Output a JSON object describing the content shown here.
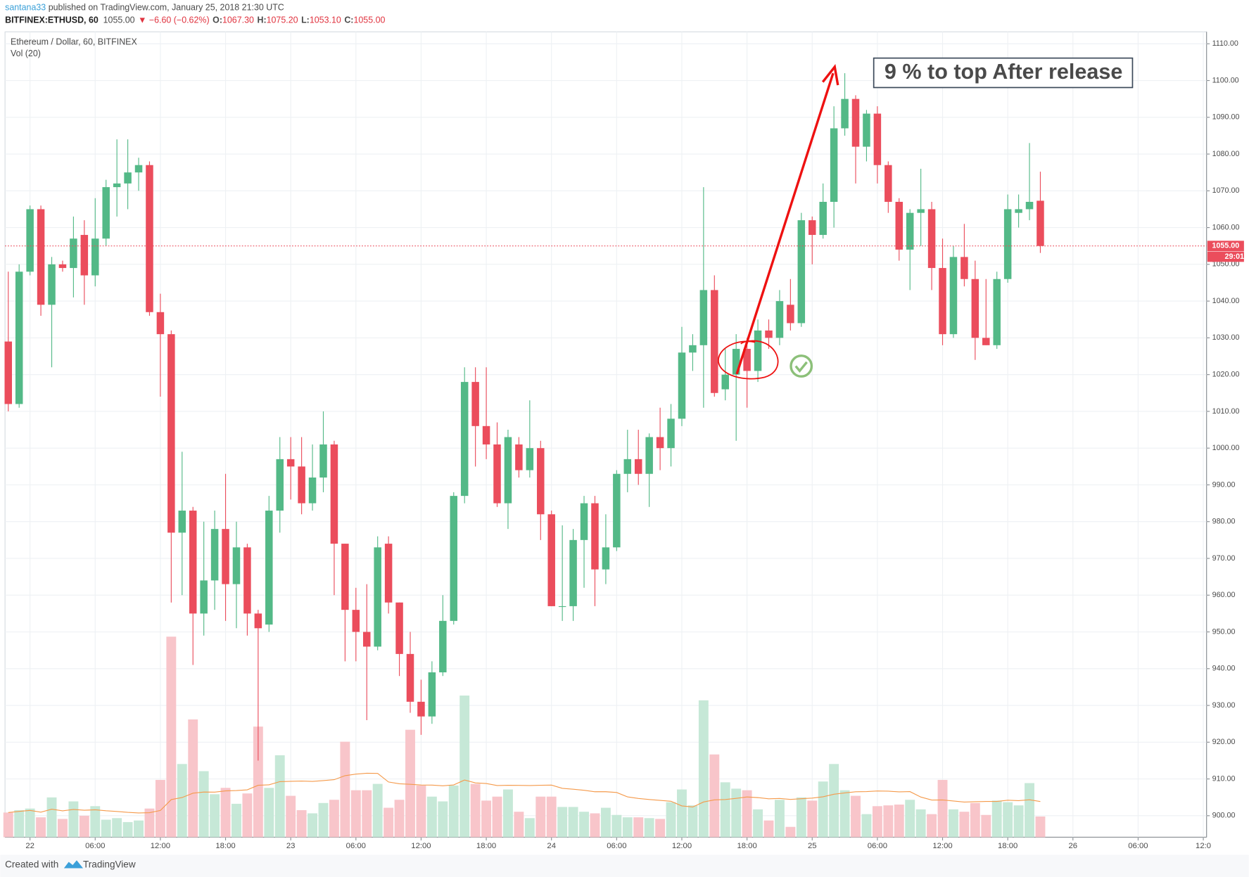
{
  "header": {
    "author": "santana33",
    "published": " published on TradingView.com, January 25, 2018 21:30 UTC",
    "symbol": "BITFINEX:ETHUSD, 60",
    "last": "1055.00",
    "change": "▼ −6.60 (−0.62%)",
    "ohlc": [
      {
        "key": "O:",
        "value": "1067.30"
      },
      {
        "key": "H:",
        "value": "1075.20"
      },
      {
        "key": "L:",
        "value": "1053.10"
      },
      {
        "key": "C:",
        "value": "1055.00"
      }
    ]
  },
  "chart_data": {
    "type": "candlestick",
    "title": "Ethereum / Dollar, 60, BITFINEX",
    "volume_label": "Vol (20)",
    "annotation": "9 % to top After release",
    "open": [
      1029,
      1012,
      1048,
      1065,
      1039,
      1050,
      1049,
      1058,
      1047,
      1057,
      1071,
      1072,
      1075,
      1077,
      1037,
      1031,
      977,
      983,
      955,
      964,
      978,
      963,
      973,
      955,
      952,
      983,
      997,
      995,
      985,
      992,
      1001,
      974,
      956,
      950,
      946,
      974,
      958,
      944,
      931,
      927,
      939,
      953,
      987,
      1018,
      1006,
      1001,
      985,
      1001,
      994,
      1000,
      982,
      957,
      957,
      975,
      985,
      967,
      973,
      993,
      997,
      993,
      1003,
      1000,
      1008,
      1026,
      1028,
      1043,
      1016,
      1020,
      1027,
      1021,
      1032,
      1030,
      1039,
      1034,
      1062,
      1058,
      1067,
      1087,
      1095,
      1082,
      1091,
      1077,
      1067,
      1054,
      1064,
      1065,
      1049,
      1031,
      1052,
      1046,
      1030,
      1028,
      1046,
      1064,
      1065,
      1067.3
    ],
    "high": [
      1048,
      1050,
      1066,
      1066,
      1052,
      1051,
      1063,
      1062,
      1068,
      1073,
      1084,
      1084,
      1079,
      1078,
      1042,
      1032,
      999,
      984,
      980,
      983,
      993,
      980,
      974,
      956,
      987,
      1003,
      1003,
      1003,
      1001,
      1010,
      1002,
      974,
      962,
      963,
      976,
      976,
      958,
      950,
      937,
      942,
      960,
      988,
      1022,
      1022,
      1022,
      1007,
      1005,
      1003,
      1013,
      1002,
      983,
      979,
      978,
      987,
      987,
      982,
      994,
      1005,
      1005,
      1004,
      1011,
      1012,
      1033,
      1031,
      1071,
      1047,
      1027,
      1031,
      1030,
      1035,
      1035,
      1043,
      1046,
      1064,
      1063,
      1072,
      1093,
      1102,
      1096,
      1092,
      1093,
      1078,
      1068,
      1065,
      1076,
      1067,
      1057,
      1055,
      1061,
      1051,
      1046,
      1048,
      1069,
      1069,
      1083,
      1075.2
    ],
    "low": [
      1010,
      1011,
      1047,
      1036,
      1022,
      1048,
      1041,
      1039,
      1044,
      1055,
      1063,
      1065,
      1070,
      1036,
      1014,
      958,
      960,
      941,
      949,
      956,
      953,
      951,
      949,
      915,
      950,
      977,
      986,
      982,
      983,
      988,
      960,
      942,
      942,
      926,
      945,
      955,
      938,
      928,
      922,
      925,
      938,
      952,
      985,
      995,
      997,
      984,
      978,
      992,
      992,
      975,
      957,
      953,
      953,
      962,
      957,
      963,
      972,
      988,
      990,
      984,
      994,
      995,
      1006,
      1021,
      1011,
      1014,
      1013,
      1002,
      1011,
      1018,
      1027,
      1028,
      1032,
      1033,
      1050,
      1057,
      1060,
      1085,
      1072,
      1078,
      1072,
      1064,
      1051,
      1043,
      1055,
      1043,
      1028,
      1030,
      1044,
      1024,
      1028,
      1027,
      1045,
      1060,
      1062,
      1053.1
    ],
    "close": [
      1012,
      1048,
      1065,
      1039,
      1050,
      1049,
      1057,
      1047,
      1057,
      1071,
      1072,
      1075,
      1077,
      1037,
      1031,
      977,
      983,
      955,
      964,
      978,
      963,
      973,
      955,
      951,
      983,
      997,
      995,
      985,
      992,
      1001,
      974,
      956,
      950,
      946,
      973,
      958,
      944,
      931,
      927,
      939,
      953,
      987,
      1018,
      1006,
      1001,
      985,
      1003,
      994,
      1000,
      982,
      957,
      957,
      975,
      985,
      967,
      973,
      993,
      997,
      993,
      1003,
      1000,
      1008,
      1026,
      1028,
      1043,
      1015,
      1020,
      1027,
      1021,
      1032,
      1030,
      1040,
      1034,
      1062,
      1058,
      1067,
      1087,
      1095,
      1082,
      1091,
      1077,
      1067,
      1054,
      1064,
      1065,
      1049,
      1031,
      1052,
      1046,
      1030,
      1028,
      1046,
      1065,
      1065,
      1067,
      1055
    ],
    "volume": [
      31,
      34,
      36,
      25,
      50,
      23,
      45,
      27,
      39,
      22,
      24,
      19,
      21,
      36,
      72,
      252,
      92,
      148,
      83,
      54,
      62,
      42,
      55,
      139,
      62,
      103,
      52,
      34,
      30,
      43,
      47,
      120,
      59,
      59,
      67,
      37,
      47,
      135,
      65,
      51,
      45,
      65,
      178,
      67,
      46,
      51,
      60,
      32,
      24,
      51,
      51,
      38,
      38,
      32,
      30,
      37,
      28,
      25,
      25,
      24,
      23,
      44,
      60,
      40,
      172,
      104,
      69,
      61,
      59,
      35,
      21,
      47,
      13,
      50,
      46,
      70,
      92,
      59,
      52,
      29,
      39,
      40,
      41,
      47,
      35,
      29,
      72,
      35,
      32,
      43,
      28,
      46,
      44,
      40,
      68,
      26
    ],
    "volume_ma_period": 20,
    "xlim": [
      -0.3,
      110.3
    ],
    "xticks": [
      {
        "value": 2,
        "label": "22"
      },
      {
        "value": 8,
        "label": "06:00"
      },
      {
        "value": 14,
        "label": "12:00"
      },
      {
        "value": 20,
        "label": "18:00"
      },
      {
        "value": 26,
        "label": "23"
      },
      {
        "value": 32,
        "label": "06:00"
      },
      {
        "value": 38,
        "label": "12:00"
      },
      {
        "value": 44,
        "label": "18:00"
      },
      {
        "value": 50,
        "label": "24"
      },
      {
        "value": 56,
        "label": "06:00"
      },
      {
        "value": 62,
        "label": "12:00"
      },
      {
        "value": 68,
        "label": "18:00"
      },
      {
        "value": 74,
        "label": "25"
      },
      {
        "value": 80,
        "label": "06:00"
      },
      {
        "value": 86,
        "label": "12:00"
      },
      {
        "value": 92,
        "label": "18:00"
      },
      {
        "value": 98,
        "label": "26"
      },
      {
        "value": 104,
        "label": "06:00"
      },
      {
        "value": 110,
        "label": "12:0"
      }
    ],
    "ylim": [
      894.15,
      1113.25
    ],
    "yticks": [
      {
        "value": 900,
        "label": "900.00"
      },
      {
        "value": 910,
        "label": "910.00"
      },
      {
        "value": 920,
        "label": "920.00"
      },
      {
        "value": 930,
        "label": "930.00"
      },
      {
        "value": 940,
        "label": "940.00"
      },
      {
        "value": 950,
        "label": "950.00"
      },
      {
        "value": 960,
        "label": "960.00"
      },
      {
        "value": 970,
        "label": "970.00"
      },
      {
        "value": 980,
        "label": "980.00"
      },
      {
        "value": 990,
        "label": "990.00"
      },
      {
        "value": 1000,
        "label": "1000.00"
      },
      {
        "value": 1010,
        "label": "1010.00"
      },
      {
        "value": 1020,
        "label": "1020.00"
      },
      {
        "value": 1030,
        "label": "1030.00"
      },
      {
        "value": 1040,
        "label": "1040.00"
      },
      {
        "value": 1050,
        "label": "1050.00"
      },
      {
        "value": 1060,
        "label": "1060.00"
      },
      {
        "value": 1070,
        "label": "1070.00"
      },
      {
        "value": 1080,
        "label": "1080.00"
      },
      {
        "value": 1090,
        "label": "1090.00"
      },
      {
        "value": 1100,
        "label": "1100.00"
      },
      {
        "value": 1110,
        "label": "1110.00"
      }
    ],
    "y2lim": [
      0,
      1012
    ],
    "last_price": {
      "value": 1055,
      "label": "1055.00"
    },
    "countdown": "29:01",
    "grid": true,
    "up_color": "#53b987",
    "down_color": "#eb4d5c",
    "up_volume_color": "#c6e8d7",
    "down_volume_color": "#f8c5ca",
    "volume_ma_color": "#f59a4b"
  },
  "footer": {
    "created": "Created with",
    "brand": "TradingView"
  }
}
